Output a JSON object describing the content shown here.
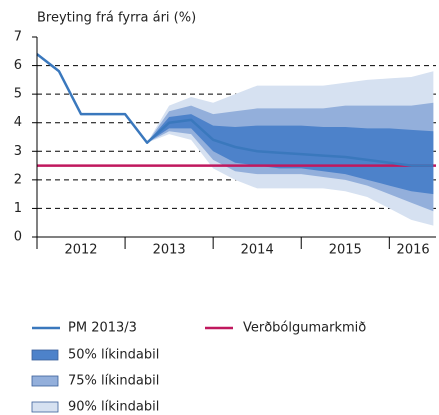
{
  "chart_data": {
    "type": "fan",
    "title": "Breyting frá fyrra ári (%)",
    "x": [
      2012,
      2012.25,
      2012.5,
      2012.75,
      2013,
      2013.25,
      2013.5,
      2013.75,
      2014,
      2014.25,
      2014.5,
      2014.75,
      2015,
      2015.25,
      2015.5,
      2015.75,
      2016,
      2016.25,
      2016.5
    ],
    "xlim": [
      2012,
      2016.53
    ],
    "xticks": [
      {
        "value": 2012.5,
        "label": "2012"
      },
      {
        "value": 2013.5,
        "label": "2013"
      },
      {
        "value": 2014.5,
        "label": "2014"
      },
      {
        "value": 2015.5,
        "label": "2015"
      },
      {
        "value": 2016.27,
        "label": "2016"
      }
    ],
    "ylim": [
      0,
      7
    ],
    "yticks": [
      0,
      1,
      2,
      3,
      4,
      5,
      6,
      7
    ],
    "grid": true,
    "series": [
      {
        "name": "PM 2013/3",
        "color": "#3a78bd",
        "values": [
          6.4,
          5.8,
          4.3,
          4.3,
          4.3,
          3.3,
          4.0,
          4.1,
          3.4,
          3.15,
          3.0,
          2.95,
          2.9,
          2.85,
          2.8,
          2.7,
          2.6,
          2.5,
          2.5
        ]
      }
    ],
    "bands": [
      {
        "name": "90% líkindabil",
        "color": "#d6e1f1",
        "lower": [
          null,
          null,
          null,
          null,
          null,
          3.3,
          3.6,
          3.4,
          2.4,
          2.0,
          1.7,
          1.7,
          1.7,
          1.7,
          1.6,
          1.4,
          1.0,
          0.6,
          0.4
        ],
        "upper": [
          null,
          null,
          null,
          null,
          null,
          3.3,
          4.6,
          4.9,
          4.7,
          5.0,
          5.3,
          5.3,
          5.3,
          5.3,
          5.4,
          5.5,
          5.55,
          5.6,
          5.8
        ]
      },
      {
        "name": "75% líkindabil",
        "color": "#93afdb",
        "lower": [
          null,
          null,
          null,
          null,
          null,
          3.3,
          3.7,
          3.6,
          2.7,
          2.3,
          2.2,
          2.2,
          2.2,
          2.1,
          2.0,
          1.8,
          1.5,
          1.2,
          0.9
        ],
        "upper": [
          null,
          null,
          null,
          null,
          null,
          3.3,
          4.4,
          4.6,
          4.3,
          4.4,
          4.5,
          4.5,
          4.5,
          4.5,
          4.6,
          4.6,
          4.6,
          4.6,
          4.7
        ]
      },
      {
        "name": "50% líkindabil",
        "color": "#4d82ca",
        "lower": [
          null,
          null,
          null,
          null,
          null,
          3.3,
          3.8,
          3.8,
          3.0,
          2.6,
          2.5,
          2.4,
          2.4,
          2.3,
          2.2,
          2.0,
          1.8,
          1.6,
          1.5
        ],
        "upper": [
          null,
          null,
          null,
          null,
          null,
          3.3,
          4.2,
          4.3,
          3.9,
          3.85,
          3.9,
          3.9,
          3.9,
          3.85,
          3.85,
          3.8,
          3.8,
          3.75,
          3.7
        ]
      }
    ],
    "reference_lines": [
      {
        "name": "Verðbólgumarkmið",
        "color": "#c0185e",
        "value": 2.5
      }
    ]
  }
}
